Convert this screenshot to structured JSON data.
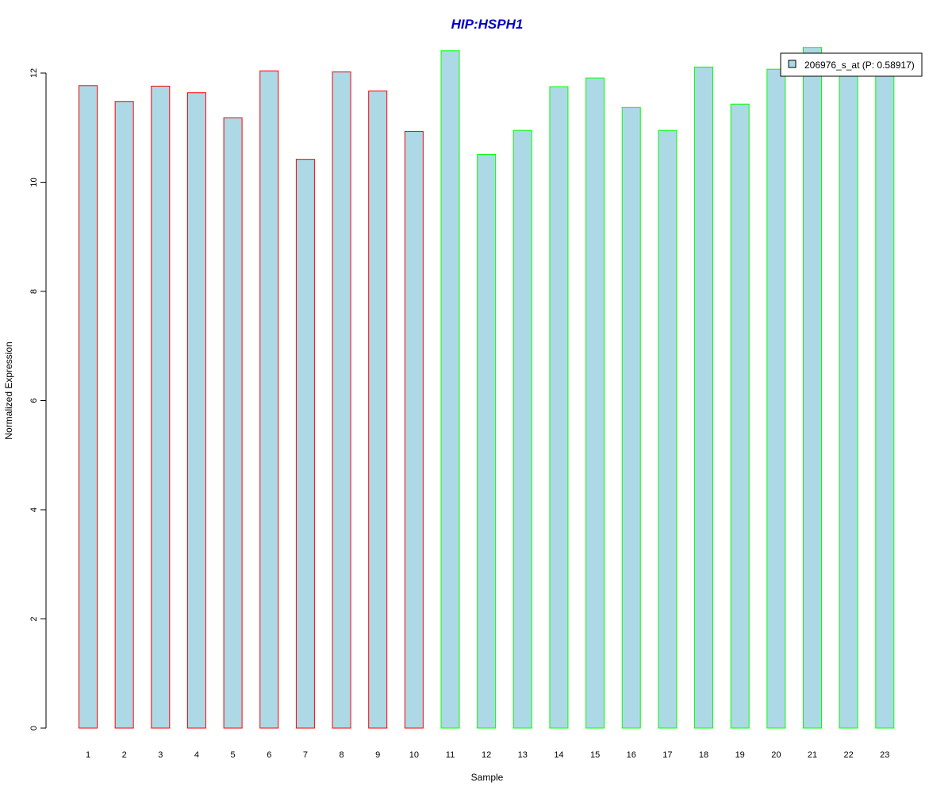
{
  "colors": {
    "bar_fill": "#add8e6",
    "group1_border": "#ff0000",
    "group2_border": "#00ff00",
    "title": "#0000cc",
    "axis": "#000000"
  },
  "chart_data": {
    "type": "bar",
    "title": "HIP:HSPH1",
    "xlabel": "Sample",
    "ylabel": "Normalized Expression",
    "ylim": [
      0,
      12.4
    ],
    "yticks": [
      0,
      2,
      4,
      6,
      8,
      10,
      12
    ],
    "categories": [
      "1",
      "2",
      "3",
      "4",
      "5",
      "6",
      "7",
      "8",
      "9",
      "10",
      "11",
      "12",
      "13",
      "14",
      "15",
      "16",
      "17",
      "18",
      "19",
      "20",
      "21",
      "22",
      "23"
    ],
    "series": [
      {
        "name": "206976_s_at (P: 0.58917)",
        "values": [
          11.77,
          11.48,
          11.76,
          11.64,
          11.18,
          12.04,
          10.42,
          12.02,
          11.67,
          10.93,
          12.41,
          10.51,
          10.95,
          11.75,
          11.91,
          11.37,
          10.95,
          12.11,
          11.43,
          12.07,
          12.47,
          12.05,
          12.05
        ]
      }
    ],
    "groups": [
      1,
      1,
      1,
      1,
      1,
      1,
      1,
      1,
      1,
      1,
      2,
      2,
      2,
      2,
      2,
      2,
      2,
      2,
      2,
      2,
      2,
      2,
      2
    ],
    "grid": false,
    "legend_position": "top-right"
  }
}
